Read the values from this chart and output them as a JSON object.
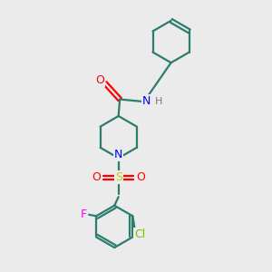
{
  "bg_color": "#ebebeb",
  "atom_colors": {
    "C": "#2d7d6e",
    "N_amide": "#0000ff",
    "N_pip": "#0000ff",
    "O": "#ff0000",
    "S": "#cccc00",
    "F": "#ff00ff",
    "Cl": "#7fbf00",
    "H": "#777777"
  },
  "line_color": "#2d7d6e",
  "line_width": 1.6,
  "fig_width": 3.0,
  "fig_height": 3.0,
  "dpi": 100
}
